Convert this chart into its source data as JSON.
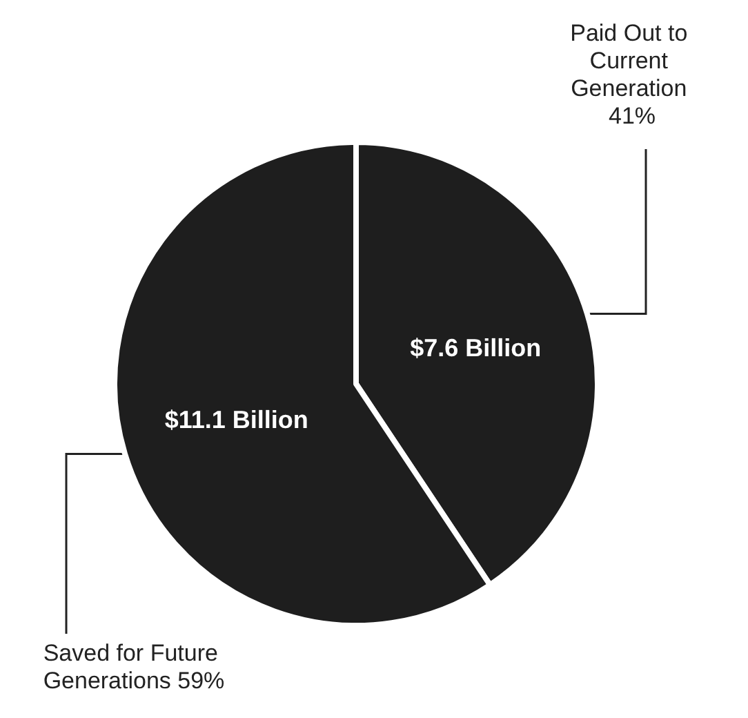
{
  "chart_data": {
    "type": "pie",
    "categories": [
      "Paid Out to Current Generation 41%",
      "Saved for Future Generations 59%"
    ],
    "values": [
      7.6,
      11.1
    ],
    "value_labels": [
      "$7.6 Billion",
      "$11.1 Billion"
    ],
    "colors": [
      "#1e1e1e",
      "#1e1e1e"
    ]
  }
}
